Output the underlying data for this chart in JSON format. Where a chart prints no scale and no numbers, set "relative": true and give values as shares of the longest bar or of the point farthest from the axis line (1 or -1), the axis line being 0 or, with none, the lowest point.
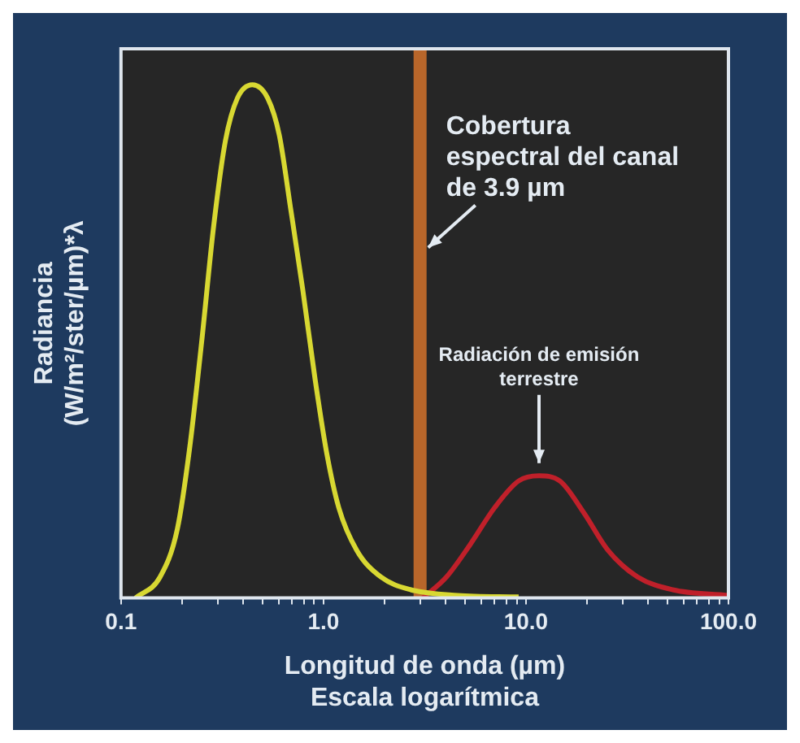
{
  "chart_data": {
    "type": "line",
    "relative": true,
    "xlabel": "Longitud de onda (µm)\nEscala logarítmica",
    "ylabel": "Radiancia\n(W/m²/ster/µm)*λ",
    "log": "x",
    "xlim": [
      0.1,
      100
    ],
    "xticks": [
      {
        "value": 0.1,
        "label": "0.1"
      },
      {
        "value": 0.2,
        "label": null
      },
      {
        "value": 0.3,
        "label": null
      },
      {
        "value": 0.4,
        "label": null
      },
      {
        "value": 0.5,
        "label": null
      },
      {
        "value": 0.6,
        "label": null
      },
      {
        "value": 0.7,
        "label": null
      },
      {
        "value": 0.8,
        "label": null
      },
      {
        "value": 0.9,
        "label": null
      },
      {
        "value": 1,
        "label": "1.0"
      },
      {
        "value": 2,
        "label": null
      },
      {
        "value": 3,
        "label": null
      },
      {
        "value": 4,
        "label": null
      },
      {
        "value": 5,
        "label": null
      },
      {
        "value": 6,
        "label": null
      },
      {
        "value": 7,
        "label": null
      },
      {
        "value": 8,
        "label": null
      },
      {
        "value": 9,
        "label": null
      },
      {
        "value": 10,
        "label": "10.0"
      },
      {
        "value": 20,
        "label": null
      },
      {
        "value": 30,
        "label": null
      },
      {
        "value": 40,
        "label": null
      },
      {
        "value": 50,
        "label": null
      },
      {
        "value": 60,
        "label": null
      },
      {
        "value": 70,
        "label": null
      },
      {
        "value": 80,
        "label": null
      },
      {
        "value": 90,
        "label": null
      },
      {
        "value": 100,
        "label": "100.0"
      }
    ],
    "marker": "none",
    "grid": false,
    "legend": false,
    "series": [
      {
        "color": "#d8d832",
        "x": [
          0.118,
          0.156,
          0.19,
          0.218,
          0.25,
          0.287,
          0.328,
          0.376,
          0.446,
          0.53,
          0.605,
          0.69,
          0.79,
          0.91,
          1.04,
          1.19,
          1.46,
          1.92,
          2.7,
          4.6,
          9.2
        ],
        "values": [
          0,
          0.041,
          0.135,
          0.29,
          0.497,
          0.725,
          0.891,
          0.974,
          1,
          0.974,
          0.902,
          0.756,
          0.601,
          0.425,
          0.28,
          0.176,
          0.093,
          0.041,
          0.016,
          0.005,
          0.002
        ]
      },
      {
        "color": "#c0202a",
        "x": [
          3.1,
          4.05,
          5.3,
          7.0,
          9.2,
          11.6,
          14.7,
          19.3,
          25.4,
          35.6,
          53,
          99
        ],
        "values": [
          0,
          0.041,
          0.104,
          0.176,
          0.228,
          0.238,
          0.228,
          0.166,
          0.093,
          0.041,
          0.016,
          0.005
        ]
      }
    ],
    "ref_lines": [
      {
        "axis": "x",
        "value": 3,
        "color": "#b8662a"
      }
    ],
    "annotations": [
      {
        "text": "Cobertura espectral del canal de 3.9 µm",
        "x": 3,
        "y": 0.67
      },
      {
        "text": "Radiación de emisión terrestre",
        "x": 11.6,
        "y": 0.25
      }
    ]
  }
}
